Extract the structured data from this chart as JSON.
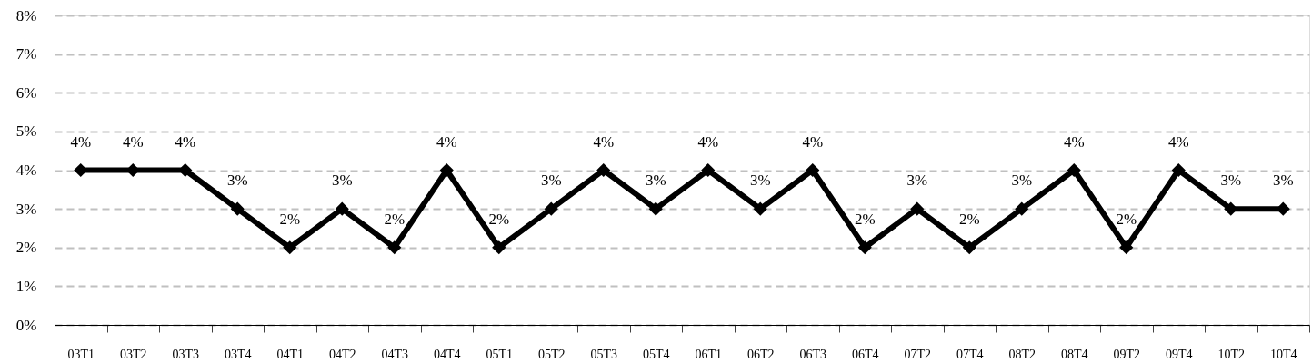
{
  "chart_data": {
    "type": "line",
    "categories": [
      "03T1",
      "03T2",
      "03T3",
      "03T4",
      "04T1",
      "04T2",
      "04T3",
      "04T4",
      "05T1",
      "05T2",
      "05T3",
      "05T4",
      "06T1",
      "06T2",
      "06T3",
      "06T4",
      "07T2",
      "07T4",
      "08T2",
      "08T4",
      "09T2",
      "09T4",
      "10T2",
      "10T4"
    ],
    "series": [
      {
        "color": "#000000",
        "values": [
          4,
          4,
          4,
          3,
          2,
          3,
          2,
          4,
          2,
          3,
          4,
          3,
          4,
          3,
          4,
          2,
          3,
          2,
          3,
          4,
          2,
          4,
          3,
          3
        ],
        "value_labels": [
          "4%",
          "4%",
          "4%",
          "3%",
          "2%",
          "3%",
          "2%",
          "4%",
          "2%",
          "3%",
          "4%",
          "3%",
          "4%",
          "3%",
          "4%",
          "2%",
          "3%",
          "2%",
          "3%",
          "4%",
          "2%",
          "4%",
          "3%",
          "3%"
        ]
      }
    ],
    "ylim": [
      0,
      8
    ],
    "yticks": [
      {
        "value": 0,
        "label": "0%"
      },
      {
        "value": 1,
        "label": "1%"
      },
      {
        "value": 2,
        "label": "2%"
      },
      {
        "value": 3,
        "label": "3%"
      },
      {
        "value": 4,
        "label": "4%"
      },
      {
        "value": 5,
        "label": "5%"
      },
      {
        "value": 6,
        "label": "6%"
      },
      {
        "value": 7,
        "label": "7%"
      },
      {
        "value": 8,
        "label": "8%"
      }
    ],
    "grid": "y",
    "marker": "diamond",
    "line_style": "solid"
  }
}
